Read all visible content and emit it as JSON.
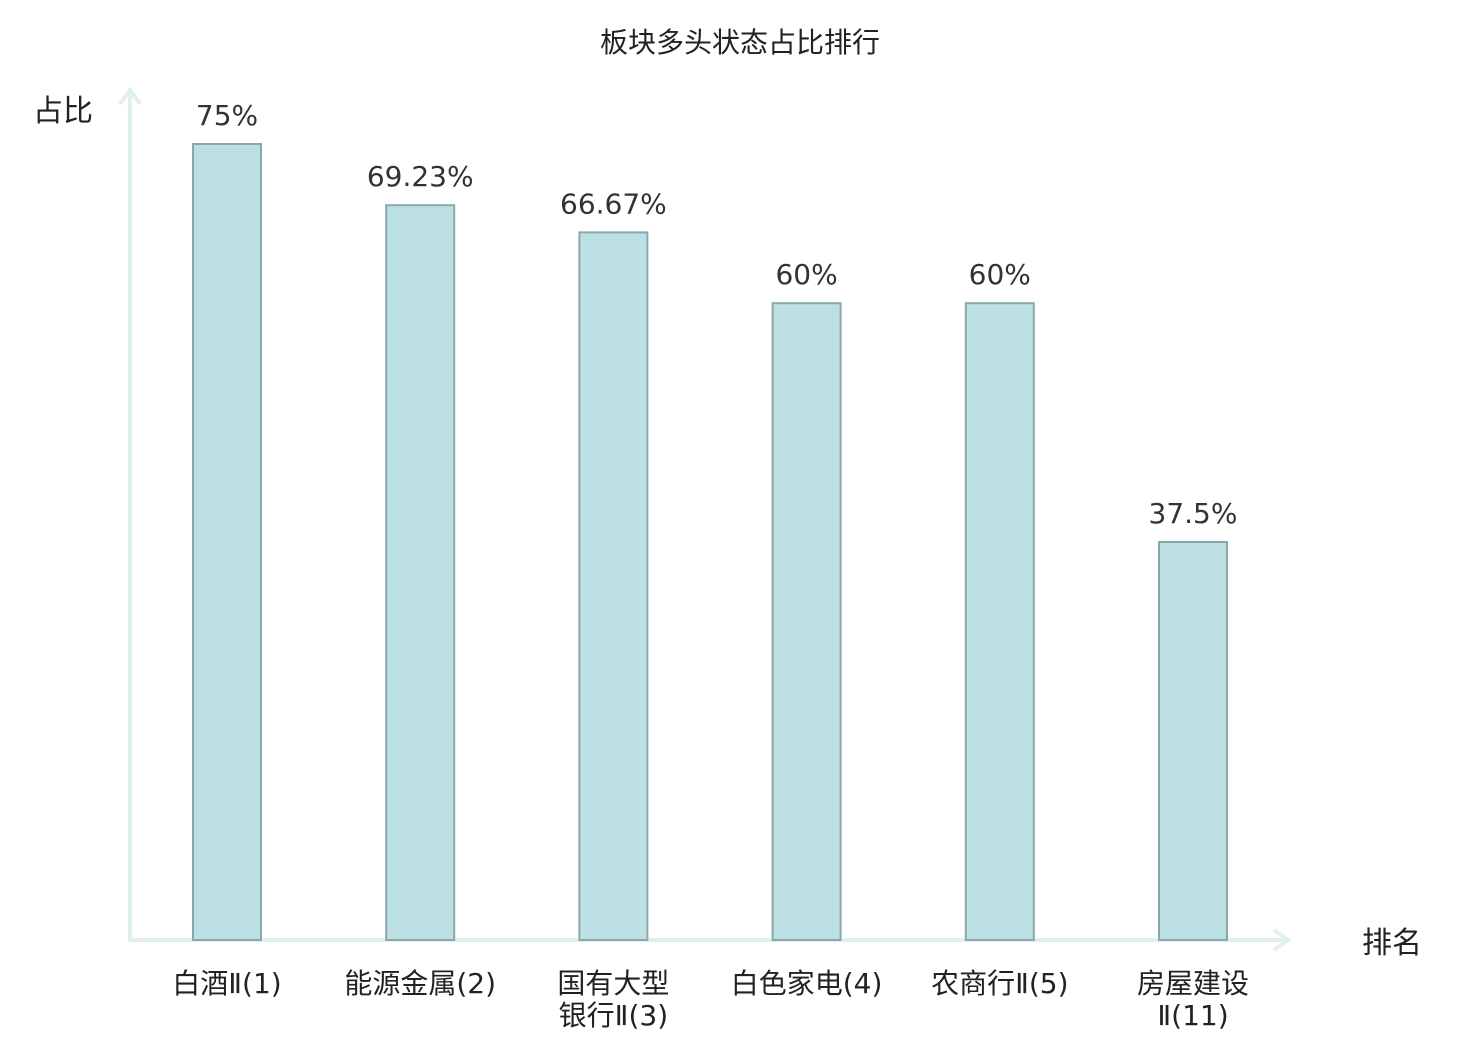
{
  "chart_data": {
    "type": "bar",
    "title": "板块多头状态占比排行",
    "xlabel": "排名",
    "ylabel": "占比",
    "categories": [
      [
        "白酒Ⅱ(1)"
      ],
      [
        "能源金属(2)"
      ],
      [
        "国有大型",
        "银行Ⅱ(3)"
      ],
      [
        "白色家电(4)"
      ],
      [
        "农商行Ⅱ(5)"
      ],
      [
        "房屋建设",
        "Ⅱ(11)"
      ]
    ],
    "values": [
      75,
      69.23,
      66.67,
      60,
      60,
      37.5
    ],
    "value_labels": [
      "75%",
      "69.23%",
      "66.67%",
      "60%",
      "60%",
      "37.5%"
    ],
    "unit": "%",
    "ylim": [
      0,
      75
    ],
    "grid": false,
    "legend": "none",
    "highlight_index": 5,
    "colors": {
      "bar_fill": "#bce0e3",
      "bar_stroke": "#8aa7ab",
      "axis": "#dff0ee",
      "label": "#222222",
      "value_label": "#333333",
      "highlight": "#e02020"
    }
  }
}
